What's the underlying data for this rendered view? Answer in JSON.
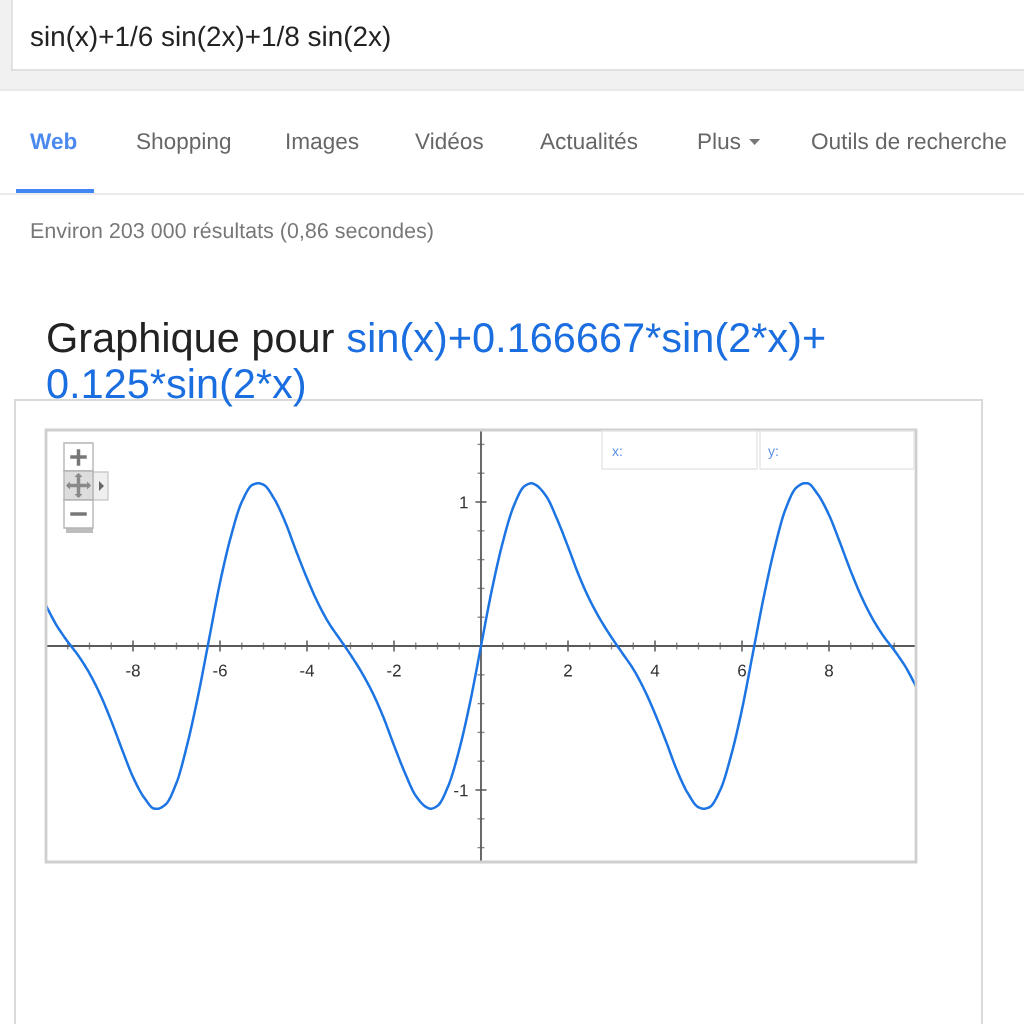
{
  "chart_data": {
    "type": "line",
    "title": "Graphique pour",
    "subtitle": "sin(x)+0.166667*sin(2*x)+0.125*sin(2*x)",
    "annotations": [
      "sin(x)+1/6 sin(2x)+1/8 sin(2x)",
      "Web",
      "Shopping",
      "Images",
      "Vidéos",
      "Actualités",
      "Plus",
      "Outils de recherche",
      "Environ 203 000 résultats (0,86 secondes)",
      "x:",
      "y:"
    ],
    "x": [
      -10,
      -9.75,
      -9.5,
      -9.25,
      -9,
      -8.75,
      -8.5,
      -8.25,
      -8,
      -7.75,
      -7.5,
      -7.44,
      -7.25,
      -7,
      -6.75,
      -6.5,
      -6.25,
      -6,
      -5.75,
      -5.5,
      -5.25,
      -5.12,
      -5,
      -4.75,
      -4.5,
      -4.25,
      -4,
      -3.75,
      -3.5,
      -3.25,
      -3,
      -2.75,
      -2.5,
      -2.25,
      -2,
      -1.75,
      -1.5,
      -1.25,
      -1.16,
      -1,
      -0.75,
      -0.5,
      -0.25,
      0,
      0.25,
      0.5,
      0.75,
      1,
      1.16,
      1.25,
      1.5,
      1.75,
      2,
      2.25,
      2.5,
      2.75,
      3,
      3.25,
      3.5,
      3.75,
      4,
      4.25,
      4.5,
      4.75,
      5,
      5.12,
      5.25,
      5.5,
      5.75,
      6,
      6.25,
      6.5,
      6.75,
      7,
      7.25,
      7.44,
      7.5,
      7.75,
      8,
      8.25,
      8.5,
      8.75,
      9,
      9.25,
      9.5,
      9.75,
      10
    ],
    "series": [
      {
        "color": "#1c75e3",
        "values": [
          0.28,
          0.14,
          0.03,
          -0.07,
          -0.19,
          -0.34,
          -0.52,
          -0.72,
          -0.91,
          -1.05,
          -1.13,
          -1.13,
          -1.1,
          -0.95,
          -0.68,
          -0.34,
          0.05,
          0.44,
          0.76,
          1.0,
          1.12,
          1.13,
          1.12,
          1.02,
          0.86,
          0.66,
          0.47,
          0.3,
          0.16,
          0.05,
          -0.06,
          -0.18,
          -0.32,
          -0.49,
          -0.69,
          -0.88,
          -1.04,
          -1.12,
          -1.13,
          -1.11,
          -0.97,
          -0.72,
          -0.39,
          0,
          0.39,
          0.72,
          0.97,
          1.11,
          1.13,
          1.12,
          1.04,
          0.88,
          0.69,
          0.49,
          0.32,
          0.18,
          0.06,
          -0.05,
          -0.16,
          -0.3,
          -0.47,
          -0.66,
          -0.86,
          -1.02,
          -1.12,
          -1.13,
          -1.12,
          -1.0,
          -0.76,
          -0.44,
          -0.05,
          0.34,
          0.68,
          0.95,
          1.1,
          1.13,
          1.13,
          1.05,
          0.91,
          0.72,
          0.52,
          0.34,
          0.19,
          0.07,
          -0.03,
          -0.14,
          -0.28
        ]
      }
    ],
    "xlim": [
      -10,
      10
    ],
    "ylim": [
      -1.5,
      1.5
    ],
    "xticks": [
      {
        "value": -10,
        "label": null
      },
      {
        "value": -9.5,
        "label": null
      },
      {
        "value": -9,
        "label": null
      },
      {
        "value": -8.5,
        "label": null
      },
      -8,
      {
        "value": -7.5,
        "label": null
      },
      {
        "value": -7,
        "label": null
      },
      {
        "value": -6.5,
        "label": null
      },
      -6,
      {
        "value": -5.5,
        "label": null
      },
      {
        "value": -5,
        "label": null
      },
      {
        "value": -4.5,
        "label": null
      },
      -4,
      {
        "value": -3.5,
        "label": null
      },
      {
        "value": -3,
        "label": null
      },
      {
        "value": -2.5,
        "label": null
      },
      -2,
      {
        "value": -1.5,
        "label": null
      },
      {
        "value": -1,
        "label": null
      },
      {
        "value": -0.5,
        "label": null
      },
      {
        "value": 0,
        "label": null
      },
      {
        "value": 0.5,
        "label": null
      },
      {
        "value": 1,
        "label": null
      },
      {
        "value": 1.5,
        "label": null
      },
      2,
      {
        "value": 2.5,
        "label": null
      },
      {
        "value": 3,
        "label": null
      },
      {
        "value": 3.5,
        "label": null
      },
      4,
      {
        "value": 4.5,
        "label": null
      },
      {
        "value": 5,
        "label": null
      },
      {
        "value": 5.5,
        "label": null
      },
      6,
      {
        "value": 6.5,
        "label": null
      },
      {
        "value": 7,
        "label": null
      },
      {
        "value": 7.5,
        "label": null
      },
      8,
      {
        "value": 8.5,
        "label": null
      },
      {
        "value": 9,
        "label": null
      },
      {
        "value": 9.5,
        "label": null
      },
      {
        "value": 10,
        "label": null
      }
    ],
    "yticks": [
      {
        "value": -1.4,
        "label": null
      },
      {
        "value": -1.2,
        "label": null
      },
      -1,
      {
        "value": -0.8,
        "label": null
      },
      {
        "value": -0.6,
        "label": null
      },
      {
        "value": -0.4,
        "label": null
      },
      {
        "value": -0.2,
        "label": null
      },
      {
        "value": 0,
        "label": null
      },
      {
        "value": 0.2,
        "label": null
      },
      {
        "value": 0.4,
        "label": null
      },
      {
        "value": 0.6,
        "label": null
      },
      {
        "value": 0.8,
        "label": null
      },
      1,
      {
        "value": 1.2,
        "label": null
      },
      {
        "value": 1.4,
        "label": null
      }
    ]
  }
}
